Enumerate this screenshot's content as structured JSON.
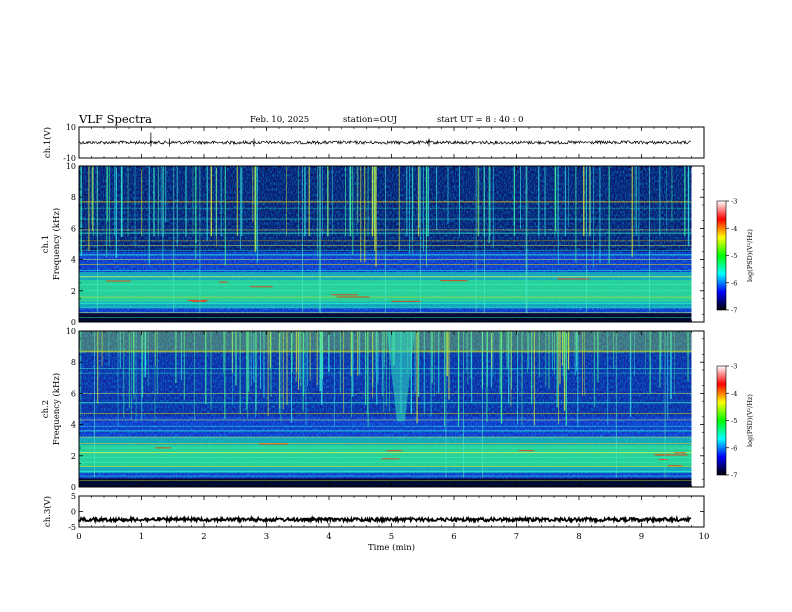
{
  "header": {
    "title": "VLF Spectra",
    "date": "Feb. 10, 2025",
    "station": "station=OUJ",
    "start": "start  UT =  8 : 40 : 0"
  },
  "chart_data": [
    {
      "type": "line",
      "name": "ch1-waveform",
      "ylabel": "ch.1(V)",
      "ylim": [
        -10,
        10
      ],
      "yticks": [
        "10",
        "-10"
      ],
      "xlim": [
        0,
        10
      ],
      "trace_level": 0,
      "trace_end_min": 9.8
    },
    {
      "type": "heatmap",
      "name": "ch1-spectrogram",
      "ylabel_line1": "ch.1",
      "ylabel_line2": "Frequency (kHz)",
      "ylim": [
        0,
        10
      ],
      "yticks": [
        "0",
        "2",
        "4",
        "6",
        "8",
        "10"
      ],
      "xlim": [
        0,
        10
      ],
      "data_end_min": 9.8,
      "colorbar": {
        "label": "log(PSD)(V²/Hz)",
        "range": [
          -7,
          -3
        ],
        "ticks": [
          "-3",
          "-4",
          "-5",
          "-6",
          "-7"
        ],
        "colors": [
          "#ffffff",
          "#ff0000",
          "#ffff00",
          "#00ff00",
          "#00ffff",
          "#0000ff",
          "#000000"
        ]
      }
    },
    {
      "type": "heatmap",
      "name": "ch2-spectrogram",
      "ylabel_line1": "ch.2",
      "ylabel_line2": "Frequency (kHz)",
      "ylim": [
        0,
        10
      ],
      "yticks": [
        "0",
        "2",
        "4",
        "6",
        "8",
        "10"
      ],
      "xlim": [
        0,
        10
      ],
      "data_end_min": 9.8,
      "colorbar": {
        "label": "log(PSD)(V²/Hz)",
        "range": [
          -7,
          -3
        ],
        "ticks": [
          "-3",
          "-4",
          "-5",
          "-6",
          "-7"
        ],
        "colors": [
          "#ffffff",
          "#ff0000",
          "#ffff00",
          "#00ff00",
          "#00ffff",
          "#0000ff",
          "#000000"
        ]
      }
    },
    {
      "type": "line",
      "name": "ch3-waveform",
      "ylabel": "ch.3(V)",
      "ylim": [
        -5,
        5
      ],
      "yticks": [
        "5",
        "0",
        "-5"
      ],
      "xlim": [
        0,
        10
      ],
      "trace_level": -2.6,
      "trace_end_min": 9.8,
      "xlabel": "Time (min)",
      "xticks": [
        "0",
        "1",
        "2",
        "3",
        "4",
        "5",
        "6",
        "7",
        "8",
        "9",
        "10"
      ]
    }
  ]
}
